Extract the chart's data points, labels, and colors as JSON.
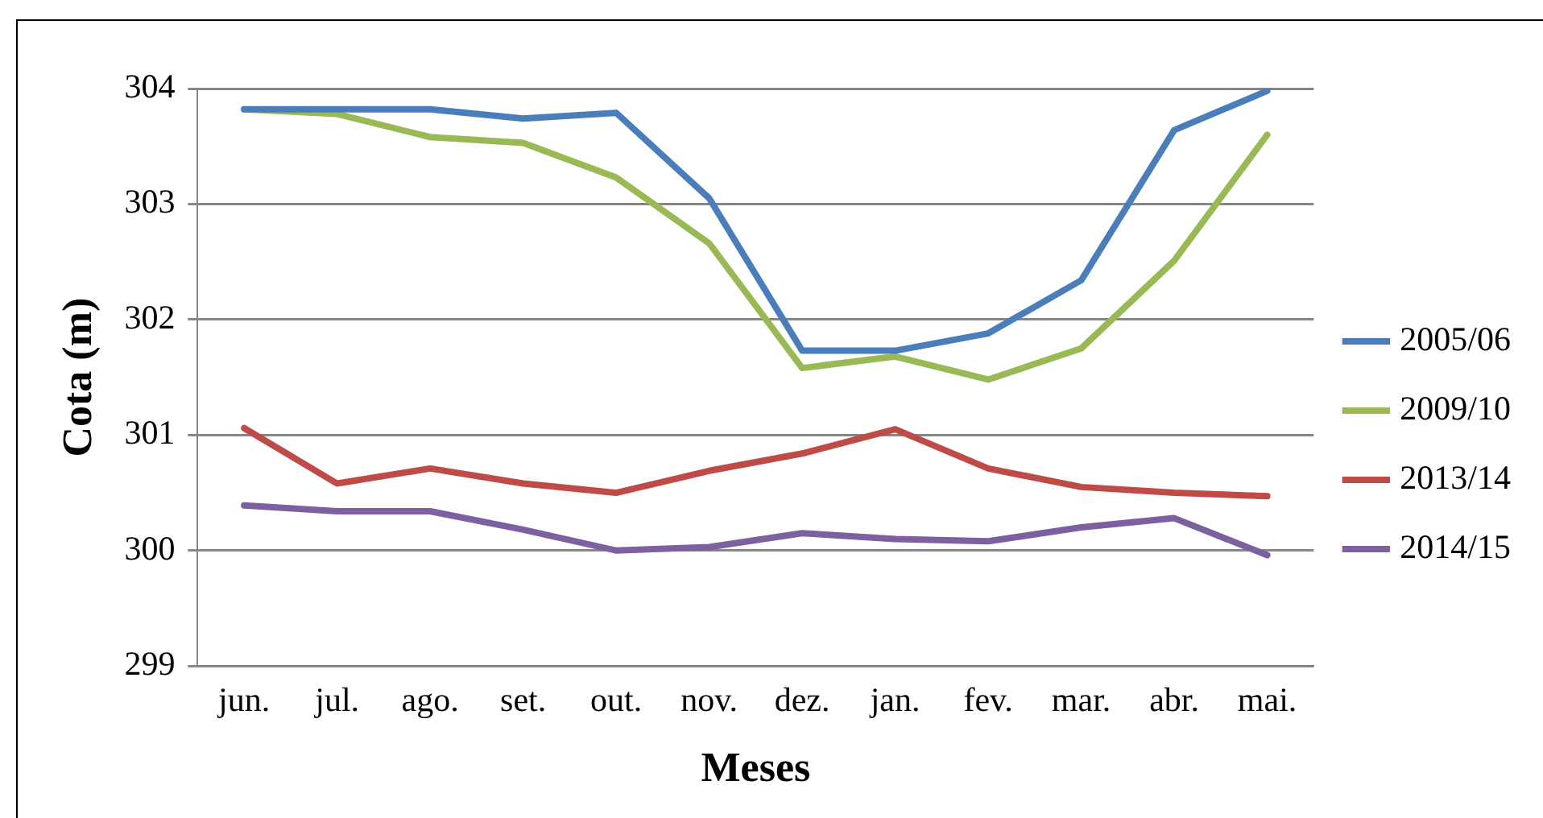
{
  "chart_data": {
    "type": "line",
    "xlabel": "Meses",
    "ylabel": "Cota (m)",
    "categories": [
      "jun.",
      "jul.",
      "ago.",
      "set.",
      "out.",
      "nov.",
      "dez.",
      "jan.",
      "fev.",
      "mar.",
      "abr.",
      "mai."
    ],
    "series": [
      {
        "name": "2005/06",
        "color": "#4a7ebb",
        "values": [
          303.82,
          303.82,
          303.82,
          303.74,
          303.79,
          303.05,
          301.73,
          301.73,
          301.88,
          302.34,
          303.64,
          303.98
        ]
      },
      {
        "name": "2009/10",
        "color": "#98b954",
        "values": [
          303.82,
          303.78,
          303.58,
          303.53,
          303.23,
          302.66,
          301.58,
          301.68,
          301.48,
          301.75,
          302.51,
          303.6
        ]
      },
      {
        "name": "2013/14",
        "color": "#be4b48",
        "values": [
          301.06,
          300.58,
          300.71,
          300.58,
          300.5,
          300.69,
          300.84,
          301.05,
          300.71,
          300.55,
          300.5,
          300.47
        ]
      },
      {
        "name": "2014/15",
        "color": "#7d60a0",
        "values": [
          300.39,
          300.34,
          300.34,
          300.18,
          300.0,
          300.03,
          300.15,
          300.1,
          300.08,
          300.2,
          300.28,
          299.96
        ]
      }
    ],
    "ylim": [
      299,
      304
    ],
    "yticks": [
      299,
      300,
      301,
      302,
      303,
      304
    ],
    "grid": "y",
    "legend": "right",
    "marker": "none",
    "line_style": "solid"
  }
}
